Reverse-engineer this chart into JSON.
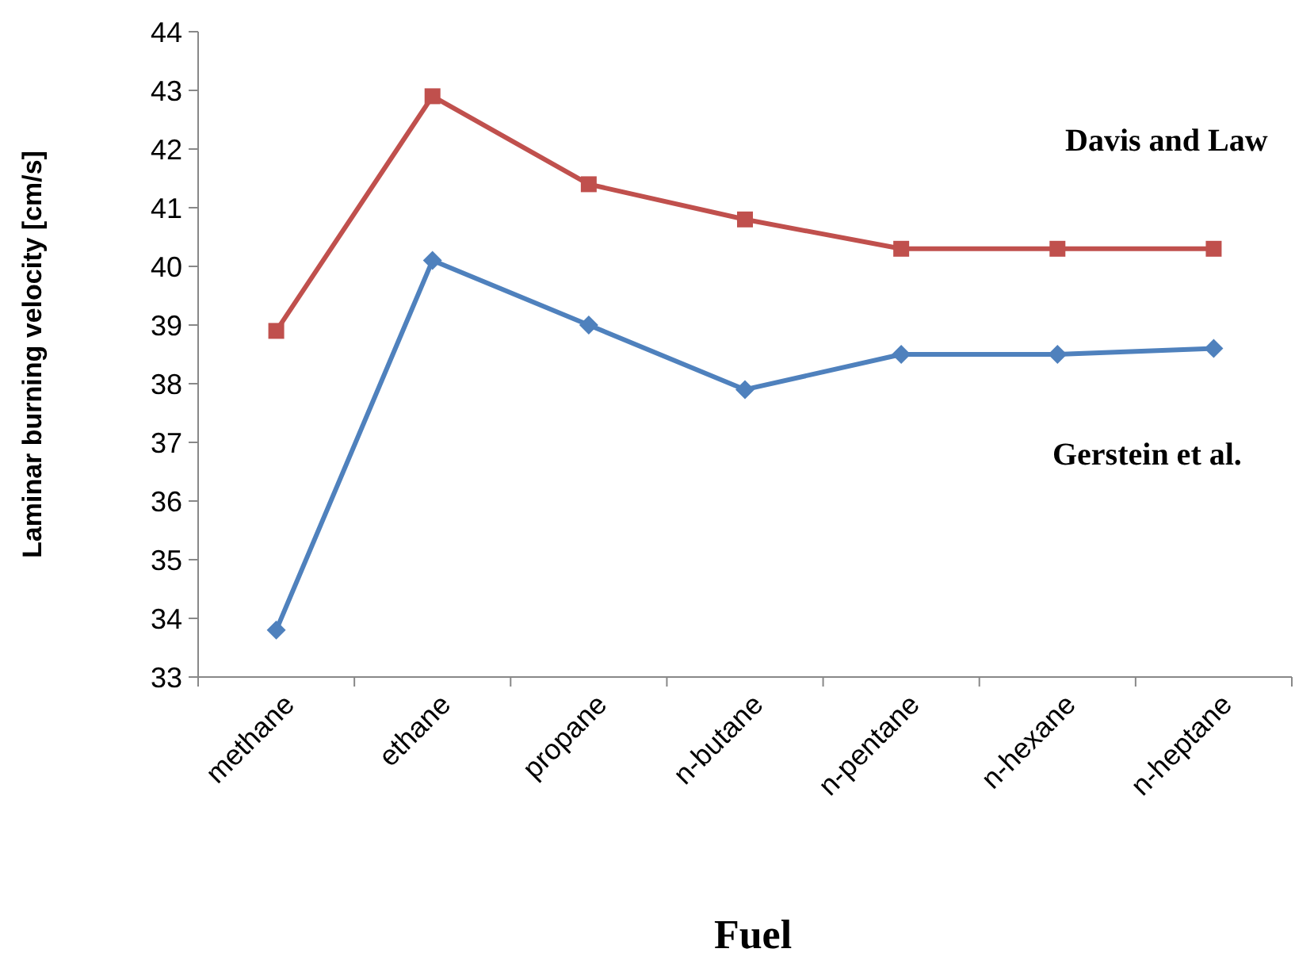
{
  "chart_data": {
    "type": "line",
    "xlabel": "Fuel",
    "ylabel": "Laminar burning velocity [cm/s]",
    "categories": [
      "methane",
      "ethane",
      "propane",
      "n-butane",
      "n-pentane",
      "n-hexane",
      "n-heptane"
    ],
    "series": [
      {
        "name": "Davis and Law",
        "color": "#c0504d",
        "marker": "square",
        "values": [
          38.9,
          42.9,
          41.4,
          40.8,
          40.3,
          40.3,
          40.3
        ]
      },
      {
        "name": "Gerstein et al.",
        "color": "#4f81bd",
        "marker": "diamond",
        "values": [
          33.8,
          40.1,
          39.0,
          37.9,
          38.5,
          38.5,
          38.6
        ]
      }
    ],
    "ylim": [
      33,
      44
    ],
    "yticks": [
      33,
      34,
      35,
      36,
      37,
      38,
      39,
      40,
      41,
      42,
      43,
      44
    ],
    "grid": false
  }
}
